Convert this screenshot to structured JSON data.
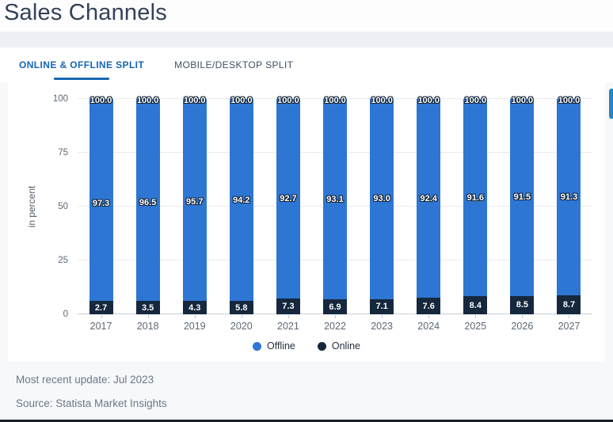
{
  "page": {
    "title": "Sales Channels"
  },
  "tabs": [
    {
      "label": "ONLINE & OFFLINE SPLIT",
      "active": true
    },
    {
      "label": "MOBILE/DESKTOP SPLIT",
      "active": false
    }
  ],
  "chart_data": {
    "type": "bar",
    "stacked": true,
    "categories": [
      "2017",
      "2018",
      "2019",
      "2020",
      "2021",
      "2022",
      "2023",
      "2024",
      "2025",
      "2026",
      "2027"
    ],
    "series": [
      {
        "name": "Offline",
        "color": "#2e76d3",
        "values": [
          97.3,
          96.5,
          95.7,
          94.2,
          92.7,
          93.1,
          93.0,
          92.4,
          91.6,
          91.5,
          91.3
        ]
      },
      {
        "name": "Online",
        "color": "#15283e",
        "values": [
          2.7,
          3.5,
          4.3,
          5.8,
          7.3,
          6.9,
          7.1,
          7.6,
          8.4,
          8.5,
          8.7
        ]
      }
    ],
    "total_labels": [
      "100.0",
      "100.0",
      "100.0",
      "100.0",
      "100.0",
      "100.0",
      "100.0",
      "100.0",
      "100.0",
      "100.0",
      "100.0"
    ],
    "title": "Sales Channels",
    "xlabel": "",
    "ylabel": "in percent",
    "yticks": [
      0,
      25,
      50,
      75,
      100
    ],
    "ylim": [
      0,
      100
    ],
    "grid": true,
    "legend_position": "bottom"
  },
  "legend": {
    "items": [
      {
        "label": "Offline",
        "color": "#2e76d3"
      },
      {
        "label": "Online",
        "color": "#15283e"
      }
    ]
  },
  "footer": {
    "update": "Most recent update: Jul 2023",
    "source": "Source: Statista Market Insights"
  }
}
